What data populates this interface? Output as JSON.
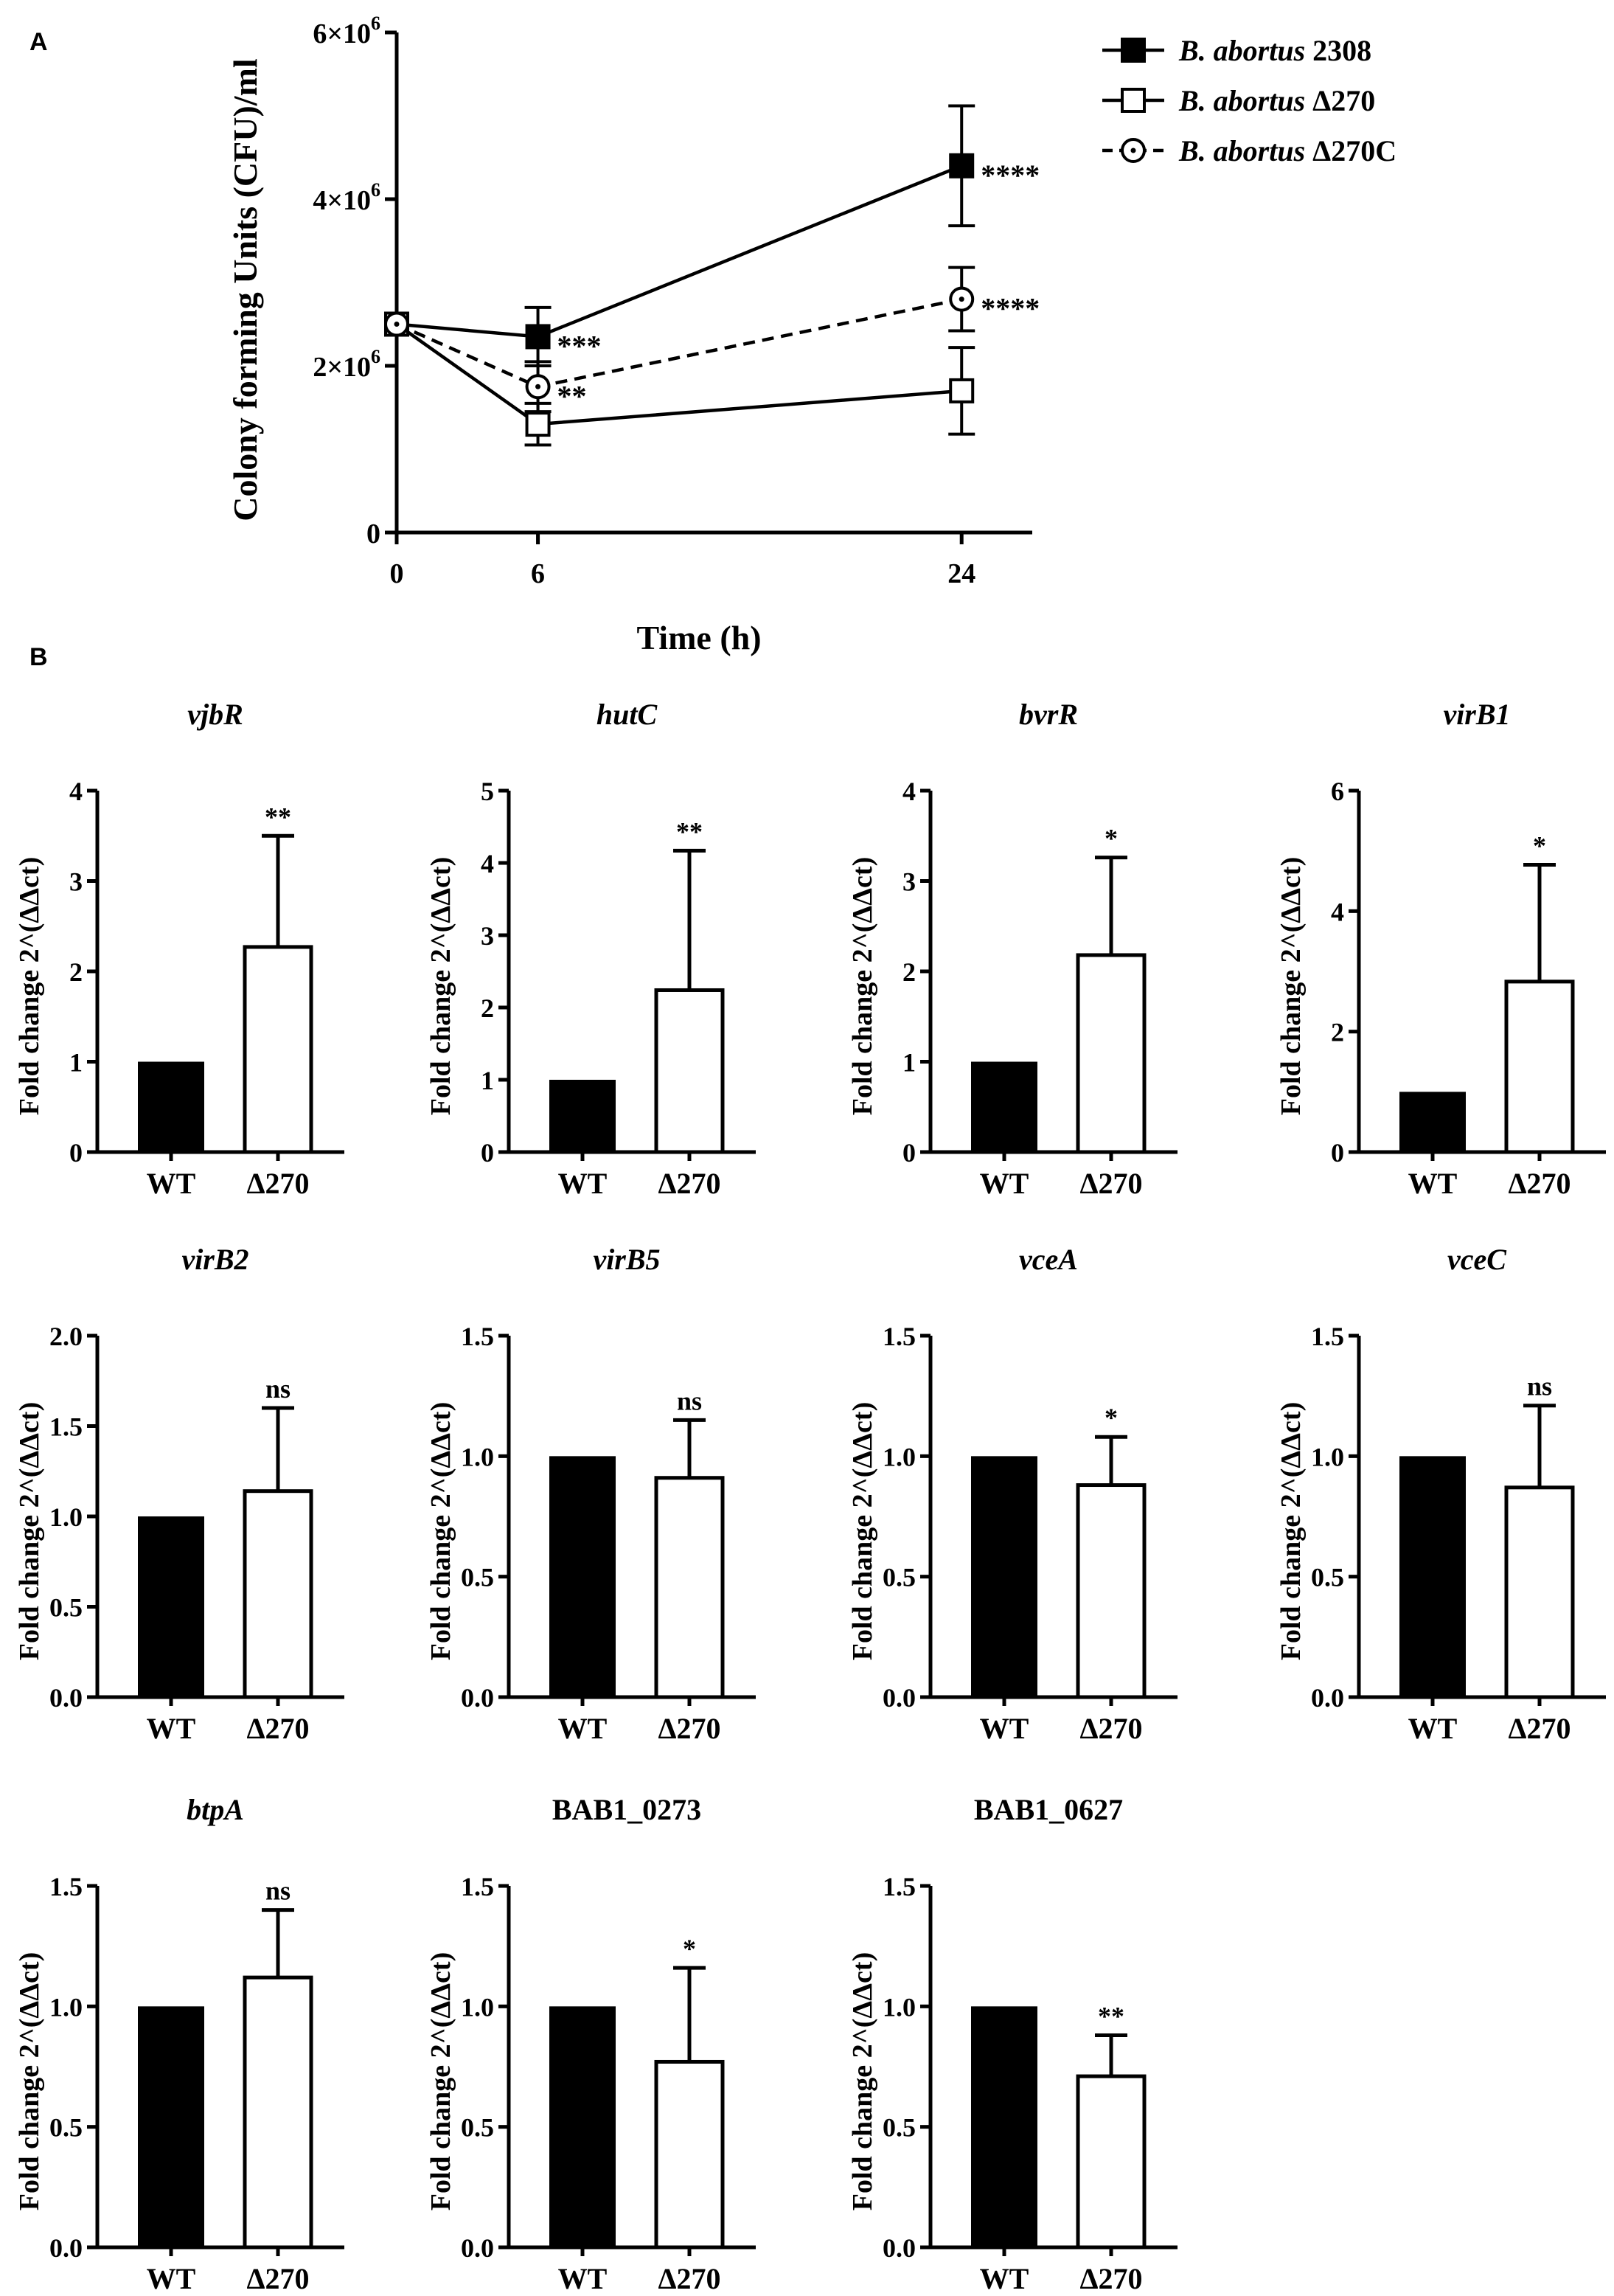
{
  "colors": {
    "ink": "#000000",
    "filled": "#000000",
    "open": "#ffffff"
  },
  "panels": {
    "a": "A",
    "b": "B"
  },
  "chart_data": [
    {
      "id": "A",
      "type": "line",
      "title": "",
      "xlabel": "Time (h)",
      "ylabel": "Colony forming Units (CFU)/ml",
      "x": [
        0,
        6,
        24
      ],
      "xticks": [
        "0",
        "6",
        "24"
      ],
      "xlim": [
        0,
        27
      ],
      "yticks": [
        {
          "value": 0,
          "base": "0",
          "exp": ""
        },
        {
          "value": 2000000,
          "base": "2×10",
          "exp": "6"
        },
        {
          "value": 4000000,
          "base": "4×10",
          "exp": "6"
        },
        {
          "value": 6000000,
          "base": "6×10",
          "exp": "6"
        }
      ],
      "ylim": [
        0,
        6000000
      ],
      "grid": false,
      "legend_position": "top-right",
      "series": [
        {
          "name": "B. abortus",
          "suffix": "2308",
          "marker": "filled-square",
          "line": "solid",
          "values": [
            2500000,
            2350000,
            4400000
          ],
          "errors": [
            0,
            350000,
            720000
          ],
          "sig": [
            "",
            "***",
            "****"
          ]
        },
        {
          "name": "B. abortus",
          "suffix": "Δ270",
          "marker": "open-square",
          "line": "solid",
          "values": [
            2500000,
            1300000,
            1700000
          ],
          "errors": [
            0,
            250000,
            520000
          ],
          "sig": [
            "",
            "",
            ""
          ]
        },
        {
          "name": "B. abortus",
          "suffix": "Δ270C",
          "marker": "open-circle-dot",
          "line": "dashed",
          "values": [
            2500000,
            1750000,
            2800000
          ],
          "errors": [
            0,
            300000,
            380000
          ],
          "sig": [
            "",
            "**",
            "****"
          ]
        }
      ]
    },
    {
      "id": "vjbR",
      "type": "bar",
      "title": "vjbR",
      "italic": true,
      "ylabel": "Fold change 2^(ΔΔct)",
      "categories": [
        "WT",
        "Δ270"
      ],
      "values": [
        1,
        2.27
      ],
      "errors": [
        0,
        1.23
      ],
      "sig": "**",
      "ylim": [
        0,
        4
      ],
      "yticks": [
        "0",
        "1",
        "2",
        "3",
        "4"
      ]
    },
    {
      "id": "hutC",
      "type": "bar",
      "title": "hutC",
      "italic": true,
      "ylabel": "Fold change 2^(ΔΔct)",
      "categories": [
        "WT",
        "Δ270"
      ],
      "values": [
        1,
        2.24
      ],
      "errors": [
        0,
        1.93
      ],
      "sig": "**",
      "ylim": [
        0,
        5
      ],
      "yticks": [
        "0",
        "1",
        "2",
        "3",
        "4",
        "5"
      ]
    },
    {
      "id": "bvrR",
      "type": "bar",
      "title": "bvrR",
      "italic": true,
      "ylabel": "Fold change 2^(ΔΔct)",
      "categories": [
        "WT",
        "Δ270"
      ],
      "values": [
        1,
        2.18
      ],
      "errors": [
        0,
        1.08
      ],
      "sig": "*",
      "ylim": [
        0,
        4
      ],
      "yticks": [
        "0",
        "1",
        "2",
        "3",
        "4"
      ]
    },
    {
      "id": "virB1",
      "type": "bar",
      "title": "virB1",
      "italic": true,
      "ylabel": "Fold change 2^(ΔΔct)",
      "categories": [
        "WT",
        "Δ270"
      ],
      "values": [
        1,
        2.83
      ],
      "errors": [
        0,
        1.94
      ],
      "sig": "*",
      "ylim": [
        0,
        6
      ],
      "yticks": [
        "0",
        "2",
        "4",
        "6"
      ]
    },
    {
      "id": "virB2",
      "type": "bar",
      "title": "virB2",
      "italic": true,
      "ylabel": "Fold change 2^(ΔΔct)",
      "categories": [
        "WT",
        "Δ270"
      ],
      "values": [
        1,
        1.14
      ],
      "errors": [
        0,
        0.46
      ],
      "sig": "ns",
      "ylim": [
        0,
        2
      ],
      "yticks": [
        "0.0",
        "0.5",
        "1.0",
        "1.5",
        "2.0"
      ]
    },
    {
      "id": "virB5",
      "type": "bar",
      "title": "virB5",
      "italic": true,
      "ylabel": "Fold change 2^(ΔΔct)",
      "categories": [
        "WT",
        "Δ270"
      ],
      "values": [
        1,
        0.91
      ],
      "errors": [
        0,
        0.24
      ],
      "sig": "ns",
      "ylim": [
        0,
        1.5
      ],
      "yticks": [
        "0.0",
        "0.5",
        "1.0",
        "1.5"
      ]
    },
    {
      "id": "vceA",
      "type": "bar",
      "title": "vceA",
      "italic": true,
      "ylabel": "Fold change 2^(ΔΔct)",
      "categories": [
        "WT",
        "Δ270"
      ],
      "values": [
        1,
        0.88
      ],
      "errors": [
        0,
        0.2
      ],
      "sig": "*",
      "ylim": [
        0,
        1.5
      ],
      "yticks": [
        "0.0",
        "0.5",
        "1.0",
        "1.5"
      ]
    },
    {
      "id": "vceC",
      "type": "bar",
      "title": "vceC",
      "italic": true,
      "ylabel": "Fold change 2^(ΔΔct)",
      "categories": [
        "WT",
        "Δ270"
      ],
      "values": [
        1,
        0.87
      ],
      "errors": [
        0,
        0.34
      ],
      "sig": "ns",
      "ylim": [
        0,
        1.5
      ],
      "yticks": [
        "0.0",
        "0.5",
        "1.0",
        "1.5"
      ]
    },
    {
      "id": "btpA",
      "type": "bar",
      "title": "btpA",
      "italic": true,
      "ylabel": "Fold change 2^(ΔΔct)",
      "categories": [
        "WT",
        "Δ270"
      ],
      "values": [
        1,
        1.12
      ],
      "errors": [
        0,
        0.28
      ],
      "sig": "ns",
      "ylim": [
        0,
        1.5
      ],
      "yticks": [
        "0.0",
        "0.5",
        "1.0",
        "1.5"
      ]
    },
    {
      "id": "BAB1_0273",
      "type": "bar",
      "title": "BAB1_0273",
      "italic": false,
      "ylabel": "Fold change 2^(ΔΔct)",
      "categories": [
        "WT",
        "Δ270"
      ],
      "values": [
        1,
        0.77
      ],
      "errors": [
        0,
        0.39
      ],
      "sig": "*",
      "ylim": [
        0,
        1.5
      ],
      "yticks": [
        "0.0",
        "0.5",
        "1.0",
        "1.5"
      ]
    },
    {
      "id": "BAB1_0627",
      "type": "bar",
      "title": "BAB1_0627",
      "italic": false,
      "ylabel": "Fold change 2^(ΔΔct)",
      "categories": [
        "WT",
        "Δ270"
      ],
      "values": [
        1,
        0.71
      ],
      "errors": [
        0,
        0.17
      ],
      "sig": "**",
      "ylim": [
        0,
        1.5
      ],
      "yticks": [
        "0.0",
        "0.5",
        "1.0",
        "1.5"
      ]
    }
  ]
}
